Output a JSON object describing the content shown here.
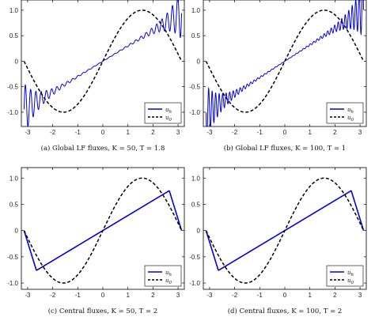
{
  "chart_data": [
    {
      "type": "line",
      "caption": "(a) Global LF fluxes, K = 50, T = 1.8",
      "xlim": [
        -3.25,
        3.25
      ],
      "ylim": [
        -1.28,
        1.2
      ],
      "xticks": [
        -3,
        -2,
        -1,
        0,
        1,
        2,
        3
      ],
      "yticks": [
        1.0,
        0.5,
        0,
        -0.5,
        -1.0
      ],
      "ytick_labels": [
        "1.0",
        "0.5",
        "0",
        "-0.5",
        "-1.0"
      ],
      "legend_position": "bottom-right",
      "series": [
        {
          "name": "u_h",
          "color": "#0000dd",
          "dashed": false,
          "linear_slope": 0.3,
          "oscillation": 0.38
        },
        {
          "name": "u_0",
          "color": "#000000",
          "dashed": true,
          "function": "sin(x)"
        }
      ]
    },
    {
      "type": "line",
      "caption": "(b) Global LF fluxes, K = 100, T = 1",
      "xlim": [
        -3.25,
        3.25
      ],
      "ylim": [
        -1.28,
        1.2
      ],
      "xticks": [
        -3,
        -2,
        -1,
        0,
        1,
        2,
        3
      ],
      "yticks": [
        1.0,
        0.5,
        0,
        -0.5,
        -1.0
      ],
      "ytick_labels": [
        "1.0",
        "0.5",
        "0",
        "-0.5",
        "-1.0"
      ],
      "legend_position": "bottom-right",
      "series": [
        {
          "name": "u_h",
          "color": "#0000dd",
          "dashed": false,
          "linear_slope": 0.32,
          "oscillation": 0.4
        },
        {
          "name": "u_0",
          "color": "#000000",
          "dashed": true,
          "function": "sin(x)"
        }
      ]
    },
    {
      "type": "line",
      "caption": "(c) Central fluxes, K = 50, T = 2",
      "xlim": [
        -3.25,
        3.25
      ],
      "ylim": [
        -1.12,
        1.2
      ],
      "xticks": [
        -3,
        -2,
        -1,
        0,
        1,
        2,
        3
      ],
      "yticks": [
        1.0,
        0.5,
        0,
        -0.5,
        -1.0
      ],
      "ytick_labels": [
        "1.0",
        "0.5",
        "0",
        "-0.5",
        "-1.0"
      ],
      "legend_position": "bottom-right",
      "series": [
        {
          "name": "u_h",
          "color": "#0000dd",
          "dashed": false,
          "peak_x": 2.65,
          "peak_y": 0.76
        },
        {
          "name": "u_0",
          "color": "#000000",
          "dashed": true,
          "function": "sin(x)"
        }
      ]
    },
    {
      "type": "line",
      "caption": "(d) Central fluxes, K = 100, T = 2",
      "xlim": [
        -3.25,
        3.25
      ],
      "ylim": [
        -1.12,
        1.2
      ],
      "xticks": [
        -3,
        -2,
        -1,
        0,
        1,
        2,
        3
      ],
      "yticks": [
        1.0,
        0.5,
        0,
        -0.5,
        -1.0
      ],
      "ytick_labels": [
        "1.0",
        "0.5",
        "0",
        "-0.5",
        "-1.0"
      ],
      "legend_position": "bottom-right",
      "series": [
        {
          "name": "u_h",
          "color": "#0000dd",
          "dashed": false,
          "peak_x": 2.65,
          "peak_y": 0.76
        },
        {
          "name": "u_0",
          "color": "#000000",
          "dashed": true,
          "function": "sin(x)"
        }
      ]
    }
  ]
}
